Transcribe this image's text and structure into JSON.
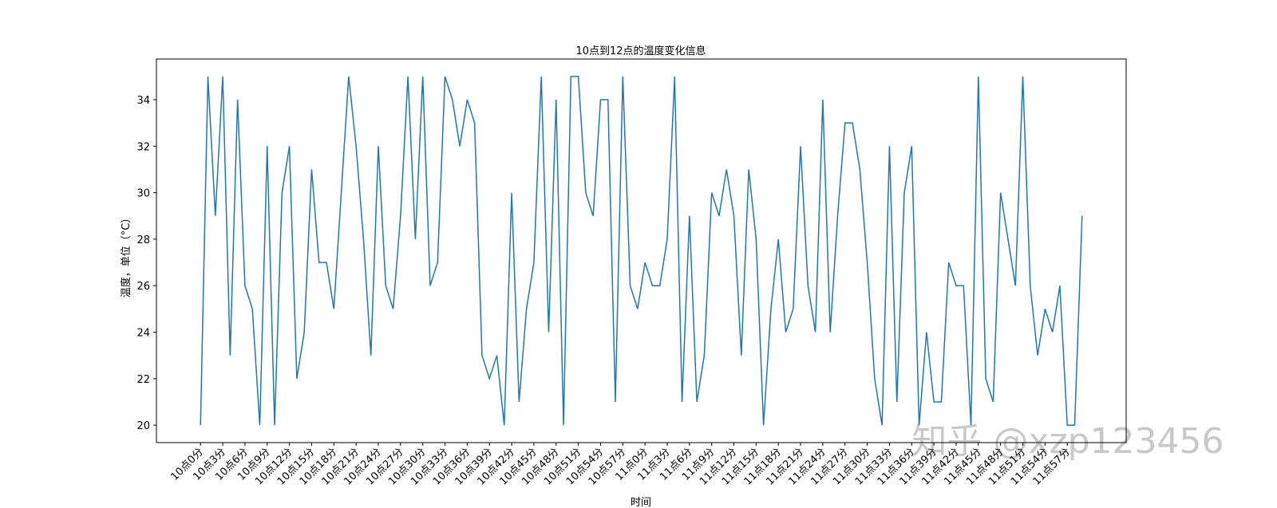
{
  "chart_data": {
    "type": "line",
    "title": "10点到12点的温度变化信息",
    "x_label": "时间",
    "y_label": "温度，单位（°C）",
    "watermark": "知乎 @xzp123456",
    "categories": [
      "10点0分",
      null,
      null,
      "10点3分",
      null,
      null,
      "10点6分",
      null,
      null,
      "10点9分",
      null,
      null,
      "10点12分",
      null,
      null,
      "10点15分",
      null,
      null,
      "10点18分",
      null,
      null,
      "10点21分",
      null,
      null,
      "10点24分",
      null,
      null,
      "10点27分",
      null,
      null,
      "10点30分",
      null,
      null,
      "10点33分",
      null,
      null,
      "10点36分",
      null,
      null,
      "10点39分",
      null,
      null,
      "10点42分",
      null,
      null,
      "10点45分",
      null,
      null,
      "10点48分",
      null,
      null,
      "10点51分",
      null,
      null,
      "10点54分",
      null,
      null,
      "10点57分",
      null,
      null,
      "11点0分",
      null,
      null,
      "11点3分",
      null,
      null,
      "11点6分",
      null,
      null,
      "11点9分",
      null,
      null,
      "11点12分",
      null,
      null,
      "11点15分",
      null,
      null,
      "11点18分",
      null,
      null,
      "11点21分",
      null,
      null,
      "11点24分",
      null,
      null,
      "11点27分",
      null,
      null,
      "11点30分",
      null,
      null,
      "11点33分",
      null,
      null,
      "11点36分",
      null,
      null,
      "11点39分",
      null,
      null,
      "11点42分",
      null,
      null,
      "11点45分",
      null,
      null,
      "11点48分",
      null,
      null,
      "11点51分",
      null,
      null,
      "11点54分",
      null,
      null,
      "11点57分",
      null,
      null
    ],
    "values": [
      20,
      35,
      29,
      35,
      23,
      34,
      26,
      25,
      20,
      32,
      20,
      30,
      32,
      22,
      24,
      31,
      27,
      27,
      25,
      30,
      35,
      32,
      28,
      23,
      32,
      26,
      25,
      29,
      35,
      28,
      35,
      26,
      27,
      35,
      34,
      32,
      34,
      33,
      23,
      22,
      23,
      20,
      30,
      21,
      25,
      27,
      35,
      24,
      34,
      20,
      35,
      35,
      30,
      29,
      34,
      34,
      21,
      35,
      26,
      25,
      27,
      26,
      26,
      28,
      35,
      21,
      29,
      21,
      23,
      30,
      29,
      31,
      29,
      23,
      31,
      28,
      20,
      25,
      28,
      24,
      25,
      32,
      26,
      24,
      34,
      24,
      29,
      33,
      33,
      31,
      27,
      22,
      20,
      32,
      21,
      30,
      32,
      20,
      24,
      21,
      21,
      27,
      26,
      26,
      20,
      35,
      22,
      21,
      30,
      28,
      26,
      35,
      26,
      23,
      25,
      24,
      26,
      20,
      20,
      29
    ],
    "color": "#1f77b4",
    "ylim": [
      19.25,
      35.75
    ],
    "yticks": [
      20,
      22,
      24,
      26,
      28,
      30,
      32,
      34
    ]
  }
}
